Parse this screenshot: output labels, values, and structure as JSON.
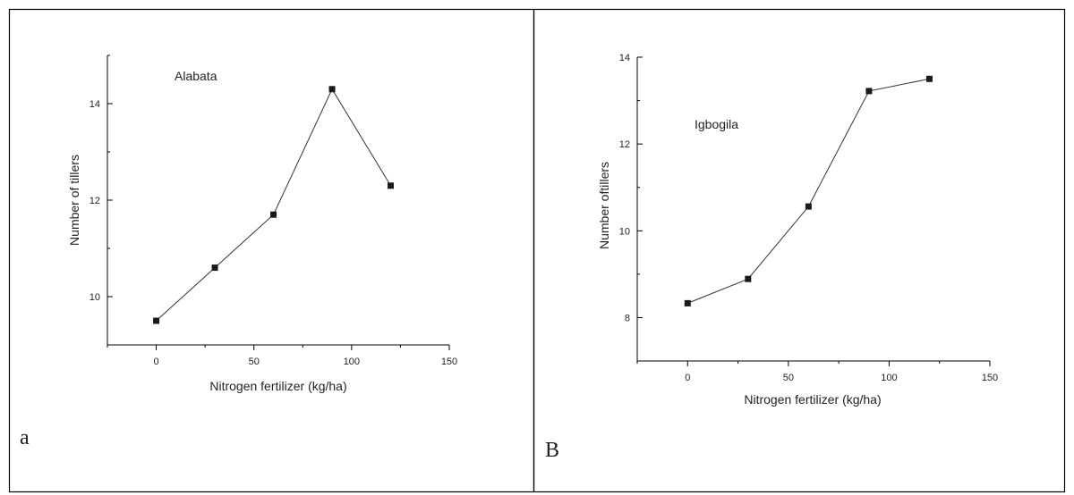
{
  "panels": [
    {
      "panel_label": "a",
      "annotation": "Alabata"
    },
    {
      "panel_label": "B",
      "annotation": "Igbogila"
    }
  ],
  "colors": {
    "line": "#333333",
    "marker": "#1a1a1a",
    "border": "#000000",
    "axis": "#000000"
  },
  "chart_data": [
    {
      "type": "line",
      "title": "",
      "xlabel": "Nitrogen fertilizer (kg/ha)",
      "ylabel": "Number of tillers",
      "xlim": [
        -25,
        150
      ],
      "ylim": [
        9.0,
        15.0
      ],
      "xticks": [
        0,
        50,
        100,
        150
      ],
      "yticks": [
        10,
        12,
        14
      ],
      "grid": false,
      "x": [
        0,
        30,
        60,
        90,
        120
      ],
      "series": [
        {
          "values": [
            9.5,
            10.6,
            11.7,
            14.3,
            12.3
          ]
        }
      ]
    },
    {
      "type": "line",
      "title": "",
      "xlabel": "Nitrogen fertilizer (kg/ha)",
      "ylabel": "Number oftillers",
      "xlim": [
        -25,
        150
      ],
      "ylim": [
        7.0,
        14.0
      ],
      "xticks": [
        0,
        50,
        100,
        150
      ],
      "yticks": [
        8,
        10,
        12,
        14
      ],
      "grid": false,
      "x": [
        0,
        30,
        60,
        90,
        120
      ],
      "series": [
        {
          "values": [
            8.33,
            8.89,
            10.56,
            13.22,
            13.5
          ]
        }
      ]
    }
  ]
}
